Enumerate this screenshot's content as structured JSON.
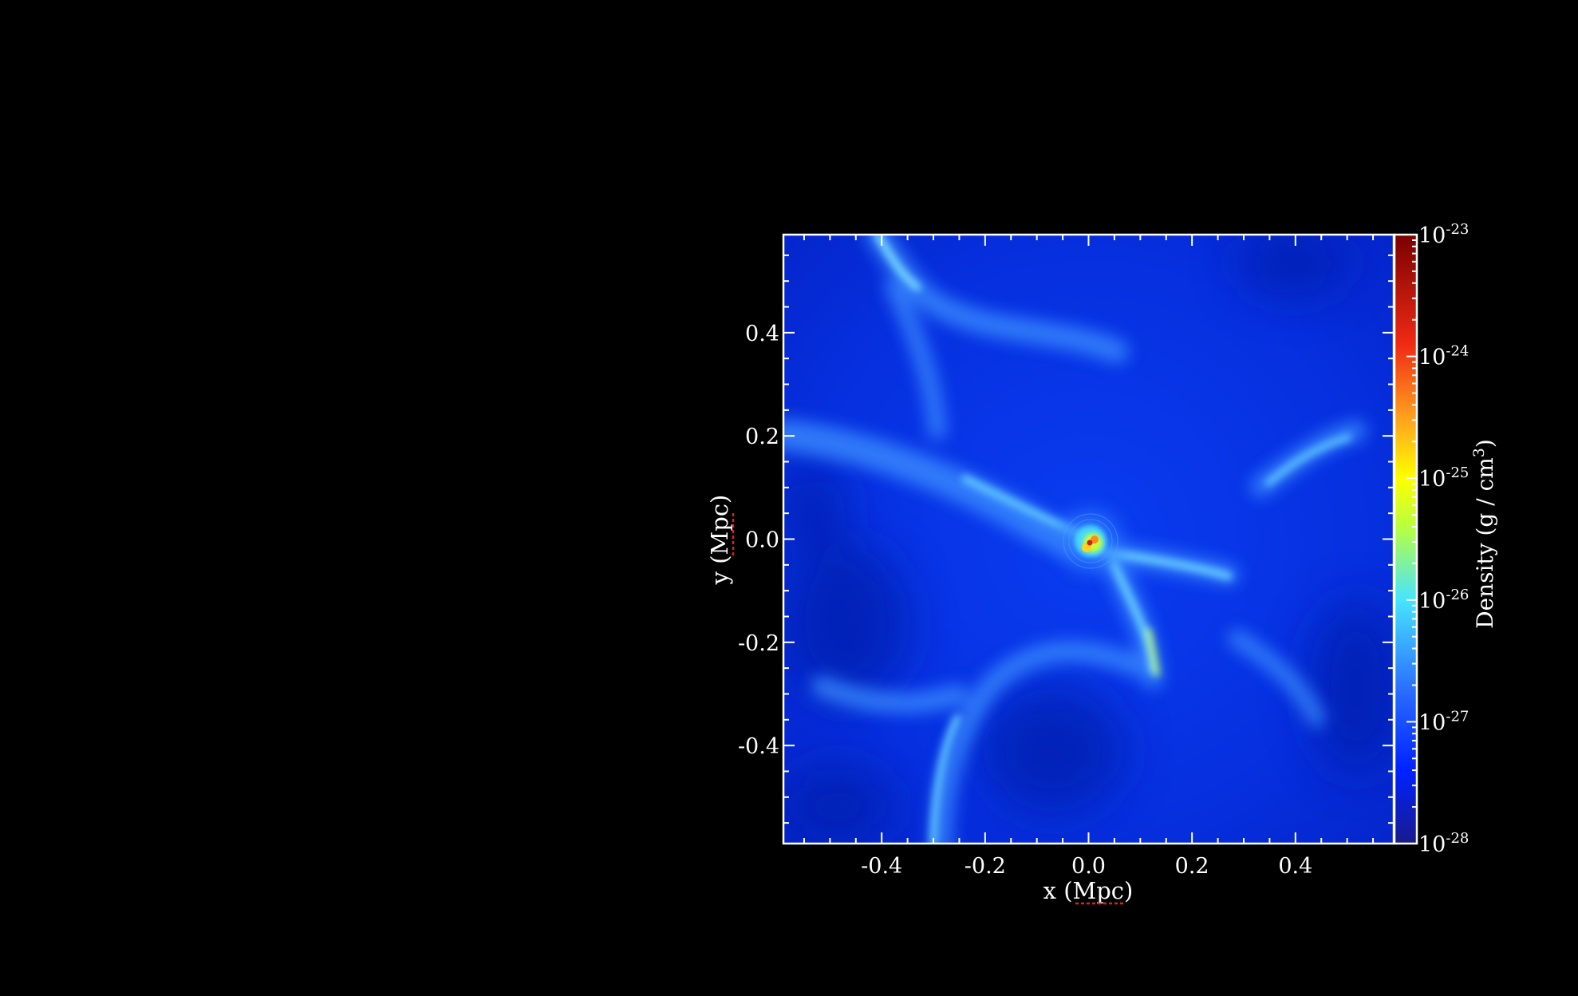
{
  "chart_data": {
    "type": "heatmap",
    "title": "",
    "xlabel": "x (Mpc)",
    "ylabel": "y (Mpc)",
    "xlim": [
      -0.59,
      0.59
    ],
    "ylim": [
      -0.59,
      0.59
    ],
    "xticks": [
      -0.4,
      -0.2,
      0.0,
      0.2,
      0.4
    ],
    "yticks": [
      -0.4,
      -0.2,
      0.0,
      0.2,
      0.4
    ],
    "xtick_labels": [
      "-0.4",
      "-0.2",
      "0.0",
      "0.2",
      "0.4"
    ],
    "ytick_labels": [
      "-0.4",
      "-0.2",
      "0.0",
      "0.2",
      "0.4"
    ],
    "colorbar": {
      "label_main": "Density (g / cm",
      "label_sup": "3",
      "label_close": ")",
      "scale": "log",
      "range": [
        1e-28,
        1e-23
      ],
      "ticks": [
        {
          "exp": -23,
          "base": "10",
          "sup": "-23"
        },
        {
          "exp": -24,
          "base": "10",
          "sup": "-24"
        },
        {
          "exp": -25,
          "base": "10",
          "sup": "-25"
        },
        {
          "exp": -26,
          "base": "10",
          "sup": "-26"
        },
        {
          "exp": -27,
          "base": "10",
          "sup": "-27"
        },
        {
          "exp": -28,
          "base": "10",
          "sup": "-28"
        }
      ],
      "colors": [
        "#1a1a8c",
        "#0022ff",
        "#2a6cff",
        "#47e4ff",
        "#b8ff40",
        "#ffff00",
        "#ffa01e",
        "#f02a14",
        "#7a0000"
      ]
    },
    "features": {
      "background_density_exp": -27.2,
      "filament_density_exp": -26.3,
      "core_density_exp": -23.2,
      "core_position": [
        0.0,
        0.0
      ]
    },
    "grid": false
  }
}
